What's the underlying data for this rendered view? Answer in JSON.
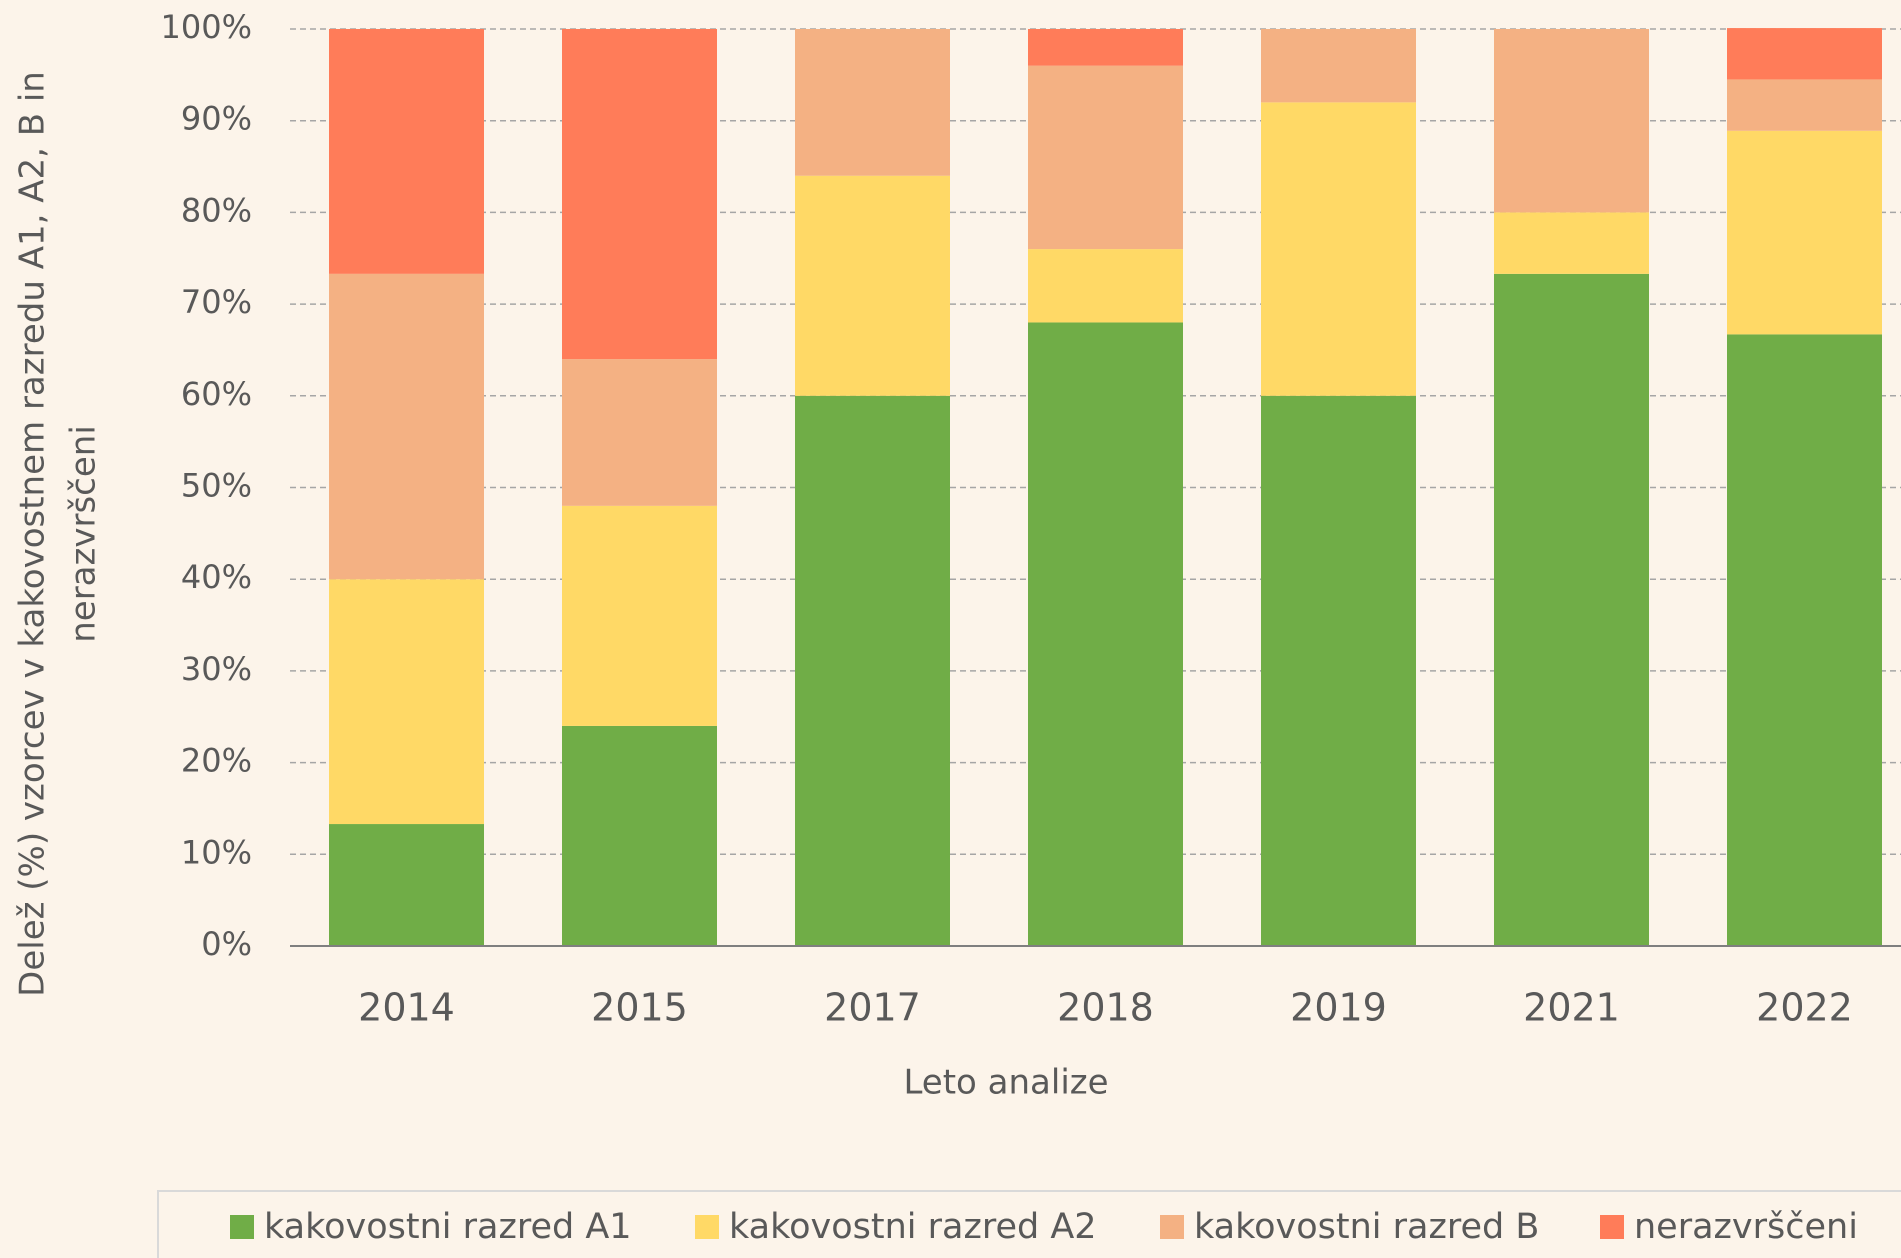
{
  "chart_data": {
    "type": "stacked_bar",
    "x_label": "Leto analize",
    "y_label": [
      "Delež (%) vzorcev v kakovostnem razredu A1, A2, B in",
      "nerazvrščeni"
    ],
    "categories": [
      "2014",
      "2015",
      "2017",
      "2018",
      "2019",
      "2021",
      "2022"
    ],
    "series": [
      {
        "name": "kakovostni razred A1",
        "color": "#70ad47",
        "values": [
          13.3,
          24,
          60,
          68,
          60,
          73.3,
          66.7
        ]
      },
      {
        "name": "kakovostni razred A2",
        "color": "#ffd966",
        "values": [
          26.7,
          24,
          24,
          8,
          32,
          6.7,
          22.2
        ]
      },
      {
        "name": "kakovostni razred B",
        "color": "#f4b183",
        "values": [
          33.3,
          16,
          16,
          20,
          8,
          20,
          5.6
        ]
      },
      {
        "name": "nerazvrščeni",
        "color": "#ff7c59",
        "values": [
          26.7,
          36,
          0,
          4,
          0,
          0,
          5.6
        ]
      }
    ],
    "ylim": [
      0,
      100
    ],
    "yticks": [
      {
        "value": 0,
        "label": "0%"
      },
      {
        "value": 10,
        "label": "10%"
      },
      {
        "value": 20,
        "label": "20%"
      },
      {
        "value": 30,
        "label": "30%"
      },
      {
        "value": 40,
        "label": "40%"
      },
      {
        "value": 50,
        "label": "50%"
      },
      {
        "value": 60,
        "label": "60%"
      },
      {
        "value": 70,
        "label": "70%"
      },
      {
        "value": 80,
        "label": "80%"
      },
      {
        "value": 90,
        "label": "90%"
      },
      {
        "value": 100,
        "label": "100%"
      }
    ],
    "grid": true
  }
}
